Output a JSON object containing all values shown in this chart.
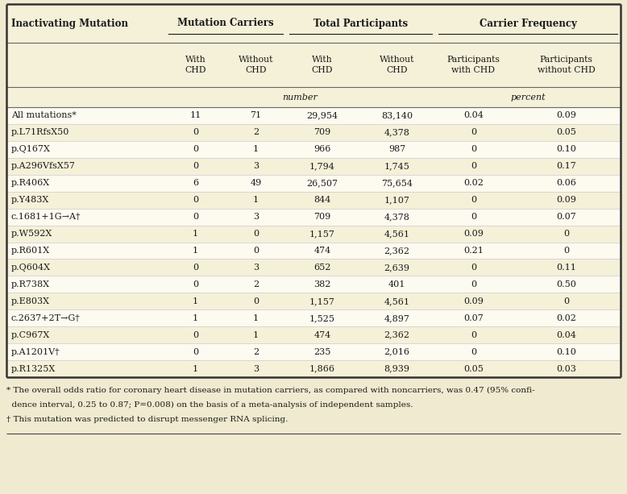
{
  "col_headers_main": [
    "Inactivating Mutation",
    "Mutation Carriers",
    "Total Participants",
    "Carrier Frequency"
  ],
  "col_headers_sub": [
    "With\nCHD",
    "Without\nCHD",
    "With\nCHD",
    "Without\nCHD",
    "Participants\nwith CHD",
    "Participants\nwithout CHD"
  ],
  "rows": [
    [
      "All mutations*",
      "11",
      "71",
      "29,954",
      "83,140",
      "0.04",
      "0.09"
    ],
    [
      "p.L71RfsX50",
      "0",
      "2",
      "709",
      "4,378",
      "0",
      "0.05"
    ],
    [
      "p.Q167X",
      "0",
      "1",
      "966",
      "987",
      "0",
      "0.10"
    ],
    [
      "p.A296VfsX57",
      "0",
      "3",
      "1,794",
      "1,745",
      "0",
      "0.17"
    ],
    [
      "p.R406X",
      "6",
      "49",
      "26,507",
      "75,654",
      "0.02",
      "0.06"
    ],
    [
      "p.Y483X",
      "0",
      "1",
      "844",
      "1,107",
      "0",
      "0.09"
    ],
    [
      "c.1681+1G→A†",
      "0",
      "3",
      "709",
      "4,378",
      "0",
      "0.07"
    ],
    [
      "p.W592X",
      "1",
      "0",
      "1,157",
      "4,561",
      "0.09",
      "0"
    ],
    [
      "p.R601X",
      "1",
      "0",
      "474",
      "2,362",
      "0.21",
      "0"
    ],
    [
      "p.Q604X",
      "0",
      "3",
      "652",
      "2,639",
      "0",
      "0.11"
    ],
    [
      "p.R738X",
      "0",
      "2",
      "382",
      "401",
      "0",
      "0.50"
    ],
    [
      "p.E803X",
      "1",
      "0",
      "1,157",
      "4,561",
      "0.09",
      "0"
    ],
    [
      "c.2637+2T→G†",
      "1",
      "1",
      "1,525",
      "4,897",
      "0.07",
      "0.02"
    ],
    [
      "p.C967X",
      "0",
      "1",
      "474",
      "2,362",
      "0",
      "0.04"
    ],
    [
      "p.A1201V†",
      "0",
      "2",
      "235",
      "2,016",
      "0",
      "0.10"
    ],
    [
      "p.R1325X",
      "1",
      "3",
      "1,866",
      "8,939",
      "0.05",
      "0.03"
    ]
  ],
  "footnotes": [
    "* The overall odds ratio for coronary heart disease in mutation carriers, as compared with noncarriers, was 0.47 (95% confi-",
    "  dence interval, 0.25 to 0.87; P=0.008) on the basis of a meta-analysis of independent samples.",
    "† This mutation was predicted to disrupt messenger RNA splicing."
  ],
  "bg_color_white": "#ffffff",
  "bg_color_cream": "#faf6e8",
  "bg_color_light": "#f5f0d8",
  "bg_color_outer": "#f0ead0",
  "text_color": "#1a1a1a",
  "header_line_color": "#444444",
  "inner_line_color": "#bbbbbb"
}
